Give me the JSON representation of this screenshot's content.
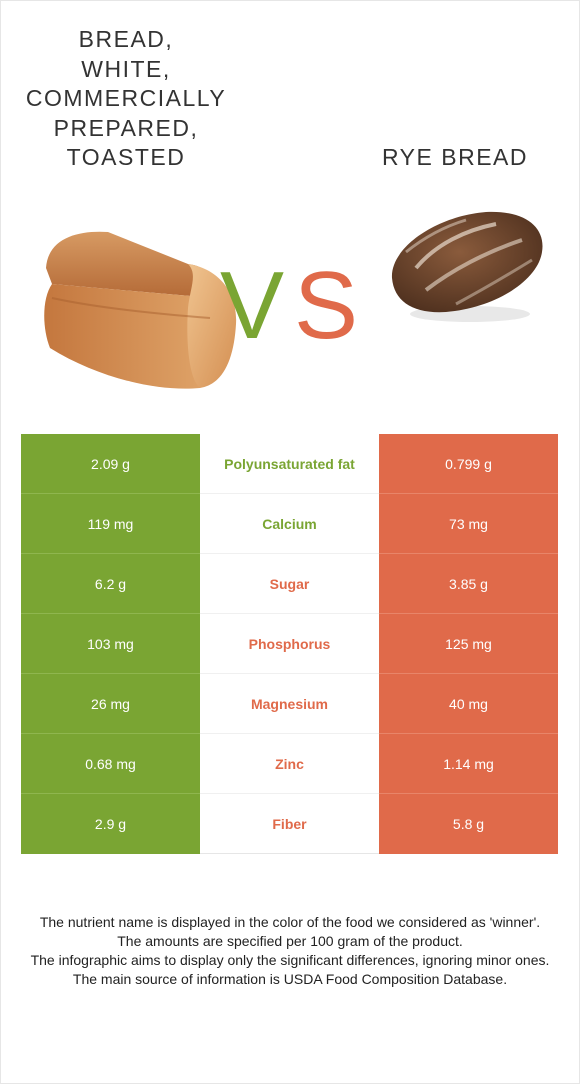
{
  "left_food": {
    "title": "BREAD, WHITE, COMMERCIALLY PREPARED, TOASTED",
    "image_icon": "white-bread-loaf-icon",
    "color": "#7aa533"
  },
  "right_food": {
    "title": "RYE BREAD",
    "image_icon": "rye-bread-loaf-icon",
    "color": "#e06a4a"
  },
  "vs": {
    "v": "V",
    "s": "S"
  },
  "rows": [
    {
      "nutrient": "Polyunsaturated fat",
      "left": "2.09 g",
      "right": "0.799 g",
      "winner": "left"
    },
    {
      "nutrient": "Calcium",
      "left": "119 mg",
      "right": "73 mg",
      "winner": "left"
    },
    {
      "nutrient": "Sugar",
      "left": "6.2 g",
      "right": "3.85 g",
      "winner": "right"
    },
    {
      "nutrient": "Phosphorus",
      "left": "103 mg",
      "right": "125 mg",
      "winner": "right"
    },
    {
      "nutrient": "Magnesium",
      "left": "26 mg",
      "right": "40 mg",
      "winner": "right"
    },
    {
      "nutrient": "Zinc",
      "left": "0.68 mg",
      "right": "1.14 mg",
      "winner": "right"
    },
    {
      "nutrient": "Fiber",
      "left": "2.9 g",
      "right": "5.8 g",
      "winner": "right"
    }
  ],
  "footnote": [
    "The nutrient name is displayed in the color of the food we considered as 'winner'.",
    "The amounts are specified per 100 gram of the product.",
    "The infographic aims to display only the significant differences, ignoring minor ones.",
    "The main source of information is USDA Food Composition Database."
  ]
}
